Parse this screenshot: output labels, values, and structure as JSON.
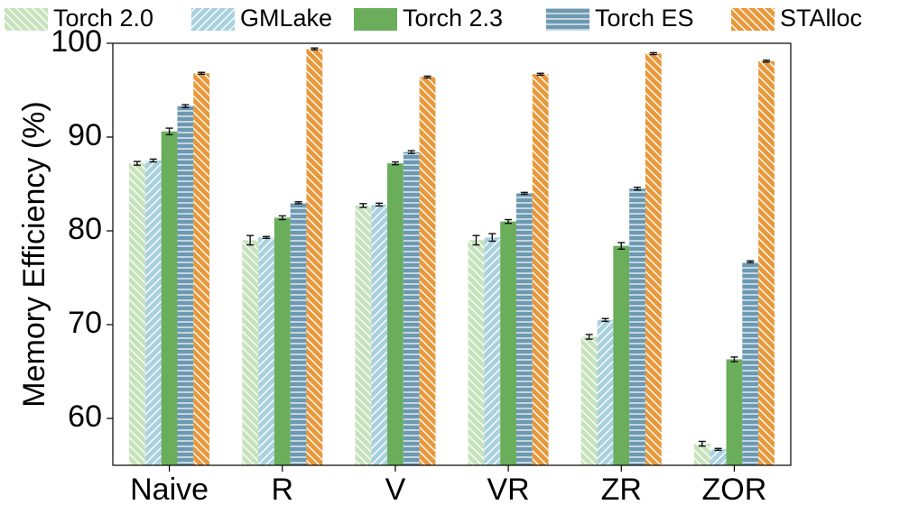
{
  "chart_data": {
    "type": "bar",
    "title": "",
    "xlabel": "",
    "ylabel": "Memory Efficiency (%)",
    "ylim": [
      55,
      100
    ],
    "yticks": [
      60,
      70,
      80,
      90,
      100
    ],
    "categories": [
      "Naive",
      "R",
      "V",
      "VR",
      "ZR",
      "ZOR"
    ],
    "series": [
      {
        "name": "Torch 2.0",
        "color": "#c6e3bb",
        "hatch": "diagonal-backslash",
        "values": [
          87.2,
          79.0,
          82.7,
          79.0,
          68.7,
          57.3
        ],
        "errors": [
          0.2,
          0.5,
          0.2,
          0.5,
          0.25,
          0.25
        ]
      },
      {
        "name": "GMLake",
        "color": "#a9d1df",
        "hatch": "diagonal-slash",
        "values": [
          87.5,
          79.3,
          82.8,
          79.3,
          70.5,
          56.7
        ],
        "errors": [
          0.15,
          0.1,
          0.15,
          0.4,
          0.15,
          0.1
        ]
      },
      {
        "name": "Torch 2.3",
        "color": "#6aae5c",
        "hatch": "none",
        "values": [
          90.6,
          81.4,
          87.2,
          81.0,
          78.4,
          66.3
        ],
        "errors": [
          0.35,
          0.2,
          0.15,
          0.2,
          0.35,
          0.25
        ]
      },
      {
        "name": "Torch ES",
        "color": "#6d99b1",
        "hatch": "horizontal",
        "values": [
          93.3,
          83.0,
          88.4,
          84.0,
          84.5,
          76.7
        ],
        "errors": [
          0.15,
          0.1,
          0.15,
          0.1,
          0.15,
          0.1
        ]
      },
      {
        "name": "STAlloc",
        "color": "#e8983a",
        "hatch": "diagonal-backslash",
        "values": [
          96.8,
          99.4,
          96.4,
          96.7,
          98.9,
          98.1
        ],
        "errors": [
          0.1,
          0.1,
          0.1,
          0.1,
          0.1,
          0.1
        ]
      }
    ],
    "legend_position": "top",
    "grid": false
  }
}
